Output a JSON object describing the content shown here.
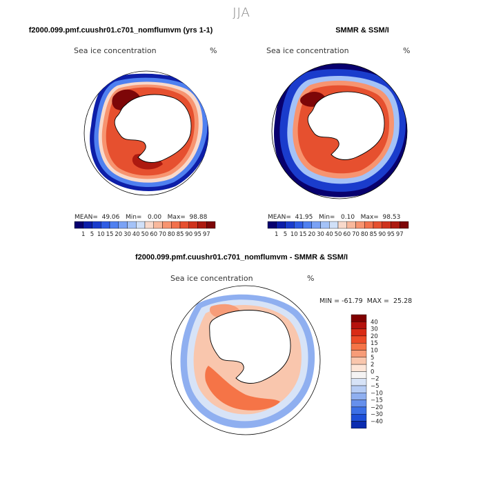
{
  "season": "JJA",
  "colors": {
    "seq": [
      "#08006e",
      "#0d1ea8",
      "#1a3ccc",
      "#2f5de4",
      "#4f80f0",
      "#7aa2f5",
      "#a4c2f7",
      "#d0e0f8",
      "#f8d9cb",
      "#f8b89c",
      "#f79470",
      "#f2714c",
      "#e6502f",
      "#cf331d",
      "#ad1a10",
      "#7d0608"
    ],
    "diff": [
      "#800000",
      "#b5120d",
      "#d92b15",
      "#ec4a26",
      "#f57447",
      "#f79c78",
      "#f9c6ad",
      "#fde5d7",
      "#f5f3f3",
      "#d7e3f7",
      "#b6ccf4",
      "#8faff0",
      "#6690ec",
      "#3c70e6",
      "#1d4fd8",
      "#0b2cb0",
      "#010c73"
    ],
    "land_fill": "#ffffff",
    "coast": "#000000"
  },
  "panels": {
    "left": {
      "title": "f2000.099.pmf.cuushr01.c701_nomflumvm (yrs 1-1)",
      "var_label": "Sea ice concentration",
      "units": "%",
      "stats": "MEAN=  49.06   Min=   0.00   Max=  98.88"
    },
    "right": {
      "title": "SMMR & SSM/I",
      "var_label": "Sea ice concentration",
      "units": "%",
      "stats": "MEAN=  41.95   Min=   0.10   Max=  98.53"
    },
    "diff": {
      "title": "f2000.099.pmf.cuushr01.c701_nomflumvm - SMMR & SSM/I",
      "var_label": "Sea ice concentration",
      "units": "%",
      "minmax": "MIN = -61.79  MAX =  25.28"
    }
  },
  "chart_data": [
    {
      "type": "heatmap",
      "name": "model_jja_sea_ice_concentration",
      "title": "f2000.099.pmf.cuushr01.c701_nomflumvm (yrs 1-1)",
      "variable": "Sea ice concentration",
      "units": "%",
      "projection": "south polar stereographic",
      "mean": 49.06,
      "min": 0.0,
      "max": 98.88,
      "levels": [
        1,
        5,
        10,
        15,
        20,
        30,
        40,
        50,
        60,
        70,
        80,
        85,
        90,
        95,
        97
      ],
      "colorbar_labels": [
        "1",
        "5",
        "10",
        "15",
        "20",
        "30",
        "40",
        "50",
        "60",
        "70",
        "80",
        "85",
        "90",
        "95",
        "97"
      ]
    },
    {
      "type": "heatmap",
      "name": "observed_jja_sea_ice_concentration",
      "title": "SMMR & SSM/I",
      "variable": "Sea ice concentration",
      "units": "%",
      "projection": "south polar stereographic",
      "mean": 41.95,
      "min": 0.1,
      "max": 98.53,
      "levels": [
        1,
        5,
        10,
        15,
        20,
        30,
        40,
        50,
        60,
        70,
        80,
        85,
        90,
        95,
        97
      ],
      "colorbar_labels": [
        "1",
        "5",
        "10",
        "15",
        "20",
        "30",
        "40",
        "50",
        "60",
        "70",
        "80",
        "85",
        "90",
        "95",
        "97"
      ]
    },
    {
      "type": "heatmap",
      "name": "difference_model_minus_obs",
      "title": "f2000.099.pmf.cuushr01.c701_nomflumvm - SMMR & SSM/I",
      "variable": "Sea ice concentration",
      "units": "%",
      "projection": "south polar stereographic",
      "min": -61.79,
      "max": 25.28,
      "levels": [
        40,
        30,
        20,
        15,
        10,
        5,
        2,
        0,
        -2,
        -5,
        -10,
        -15,
        -20,
        -30,
        -40
      ],
      "colorbar_labels": [
        "40",
        "30",
        "20",
        "15",
        "10",
        "5",
        "2",
        "0",
        "−2",
        "−5",
        "−10",
        "−15",
        "−20",
        "−30",
        "−40"
      ]
    }
  ]
}
